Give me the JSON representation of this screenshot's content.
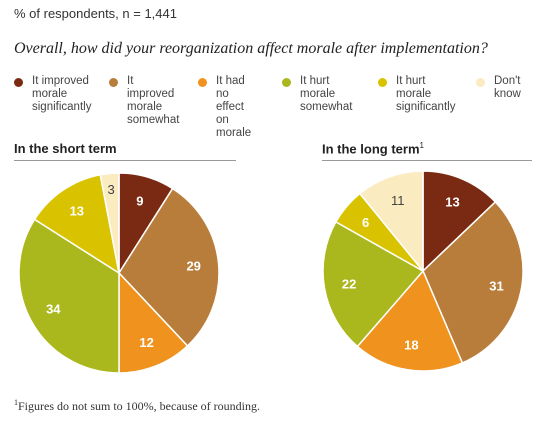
{
  "subtitle": "% of respondents, n = 1,441",
  "question": "Overall, how did your reorganization affect morale after implementation?",
  "legend": [
    {
      "label": "It improved\nmorale\nsignificantly",
      "color": "#7a2a12"
    },
    {
      "label": "It improved\nmorale\nsomewhat",
      "color": "#b87d3a"
    },
    {
      "label": "It had no\neffect on\nmorale",
      "color": "#f0921e"
    },
    {
      "label": "It hurt morale\nsomewhat",
      "color": "#aab81d"
    },
    {
      "label": "It hurt morale\nsignificantly",
      "color": "#d9c300"
    },
    {
      "label": "Don't\nknow",
      "color": "#faebc0"
    }
  ],
  "panels": {
    "short_title": "In the short term",
    "long_title": "In the long term",
    "long_footnote_marker": "1"
  },
  "footnote": {
    "marker": "1",
    "text": "Figures do not sum to 100%, because of rounding."
  },
  "chart_data": [
    {
      "type": "pie",
      "title": "In the short term",
      "categories": [
        "It improved morale significantly",
        "It improved morale somewhat",
        "It had no effect on morale",
        "It hurt morale somewhat",
        "It hurt morale significantly",
        "Don't know"
      ],
      "values": [
        9,
        29,
        12,
        34,
        13,
        3
      ],
      "colors": [
        "#7a2a12",
        "#b87d3a",
        "#f0921e",
        "#aab81d",
        "#d9c300",
        "#faebc0"
      ]
    },
    {
      "type": "pie",
      "title": "In the long term",
      "categories": [
        "It improved morale significantly",
        "It improved morale somewhat",
        "It had no effect on morale",
        "It hurt morale somewhat",
        "It hurt morale significantly",
        "Don't know"
      ],
      "values": [
        13,
        31,
        18,
        22,
        6,
        11
      ],
      "colors": [
        "#7a2a12",
        "#b87d3a",
        "#f0921e",
        "#aab81d",
        "#d9c300",
        "#faebc0"
      ]
    }
  ]
}
